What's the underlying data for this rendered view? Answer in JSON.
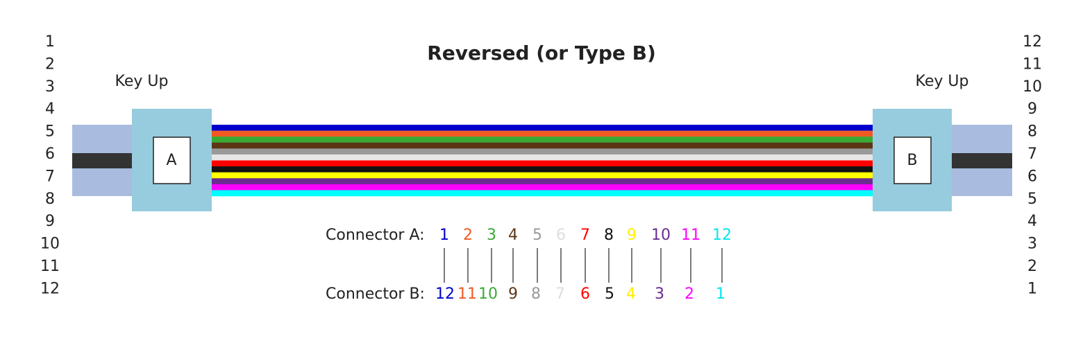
{
  "title": "Reversed (or Type B)",
  "left": {
    "key_label": "Key Up",
    "connector": "A",
    "numbers": [
      "1",
      "2",
      "3",
      "4",
      "5",
      "6",
      "7",
      "8",
      "9",
      "10",
      "11",
      "12"
    ]
  },
  "right": {
    "key_label": "Key Up",
    "connector": "B",
    "numbers": [
      "12",
      "11",
      "10",
      "9",
      "8",
      "7",
      "6",
      "5",
      "4",
      "3",
      "2",
      "1"
    ]
  },
  "fibers": [
    "#0000cc",
    "#f05a22",
    "#3aaa35",
    "#5b3516",
    "#999999",
    "#e6e6e6",
    "#ff0000",
    "#111111",
    "#ffff00",
    "#6a2c91",
    "#ff00ff",
    "#00ffff"
  ],
  "connector_a": {
    "label": "Connector A:",
    "pins": [
      {
        "label": "1",
        "color": "#0000cc"
      },
      {
        "label": "2",
        "color": "#f05a22"
      },
      {
        "label": "3",
        "color": "#3aaa35"
      },
      {
        "label": "4",
        "color": "#5b3516"
      },
      {
        "label": "5",
        "color": "#999999"
      },
      {
        "label": "6",
        "color": "#dddddd"
      },
      {
        "label": "7",
        "color": "#ff0000"
      },
      {
        "label": "8",
        "color": "#111111"
      },
      {
        "label": "9",
        "color": "#ffee00"
      },
      {
        "label": "10",
        "color": "#6a2c91"
      },
      {
        "label": "11",
        "color": "#ff00ff"
      },
      {
        "label": "12",
        "color": "#00e5ee"
      }
    ]
  },
  "connector_b": {
    "label": "Connector B:",
    "pins": [
      {
        "label": "12",
        "color": "#0000cc"
      },
      {
        "label": "11",
        "color": "#f05a22"
      },
      {
        "label": "10",
        "color": "#3aaa35"
      },
      {
        "label": "9",
        "color": "#5b3516"
      },
      {
        "label": "8",
        "color": "#999999"
      },
      {
        "label": "7",
        "color": "#dddddd"
      },
      {
        "label": "6",
        "color": "#ff0000"
      },
      {
        "label": "5",
        "color": "#111111"
      },
      {
        "label": "4",
        "color": "#ffee00"
      },
      {
        "label": "3",
        "color": "#6a2c91"
      },
      {
        "label": "2",
        "color": "#ff00ff"
      },
      {
        "label": "1",
        "color": "#00e5ee"
      }
    ]
  }
}
